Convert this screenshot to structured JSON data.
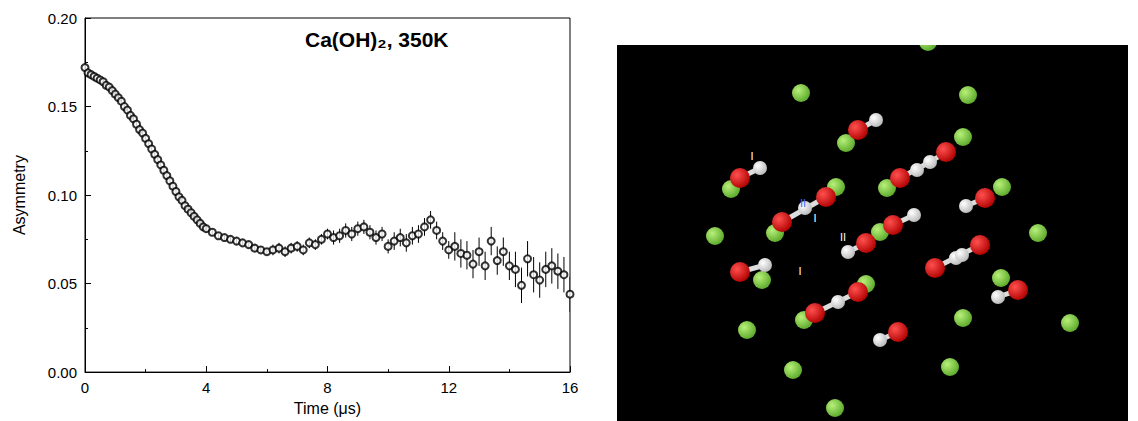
{
  "chart_data": {
    "type": "scatter",
    "title": "Ca(OH)₂, 350K",
    "x_label": "Time (μs)",
    "y_label": "Asymmetry",
    "marker": "open_circle",
    "color": "#000000",
    "grid": false,
    "x": [
      0,
      0.1,
      0.2,
      0.3,
      0.4,
      0.5,
      0.6,
      0.7,
      0.8,
      0.9,
      1.0,
      1.1,
      1.2,
      1.3,
      1.4,
      1.5,
      1.6,
      1.7,
      1.8,
      1.9,
      2.0,
      2.1,
      2.2,
      2.3,
      2.4,
      2.5,
      2.6,
      2.7,
      2.8,
      2.9,
      3.0,
      3.1,
      3.2,
      3.3,
      3.4,
      3.5,
      3.6,
      3.7,
      3.8,
      3.9,
      4.0,
      4.2,
      4.4,
      4.6,
      4.8,
      5.0,
      5.2,
      5.4,
      5.6,
      5.8,
      6.0,
      6.2,
      6.4,
      6.6,
      6.8,
      7.0,
      7.2,
      7.4,
      7.6,
      7.8,
      8.0,
      8.2,
      8.4,
      8.6,
      8.8,
      9.0,
      9.2,
      9.4,
      9.6,
      9.8,
      10.0,
      10.2,
      10.4,
      10.6,
      10.8,
      11.0,
      11.2,
      11.4,
      11.6,
      11.8,
      12.0,
      12.2,
      12.4,
      12.6,
      12.8,
      13.0,
      13.2,
      13.4,
      13.6,
      13.8,
      14.0,
      14.2,
      14.4,
      14.6,
      14.8,
      15.0,
      15.2,
      15.4,
      15.6,
      15.8,
      16.0
    ],
    "values": [
      0.172,
      0.169,
      0.168,
      0.167,
      0.166,
      0.165,
      0.164,
      0.162,
      0.161,
      0.159,
      0.157,
      0.155,
      0.153,
      0.15,
      0.148,
      0.145,
      0.143,
      0.14,
      0.137,
      0.135,
      0.132,
      0.129,
      0.126,
      0.123,
      0.12,
      0.117,
      0.114,
      0.111,
      0.108,
      0.105,
      0.102,
      0.099,
      0.097,
      0.094,
      0.092,
      0.09,
      0.088,
      0.086,
      0.084,
      0.082,
      0.081,
      0.079,
      0.077,
      0.076,
      0.075,
      0.074,
      0.073,
      0.072,
      0.07,
      0.069,
      0.068,
      0.069,
      0.07,
      0.068,
      0.07,
      0.071,
      0.069,
      0.073,
      0.072,
      0.075,
      0.078,
      0.076,
      0.077,
      0.08,
      0.078,
      0.081,
      0.082,
      0.079,
      0.076,
      0.078,
      0.071,
      0.074,
      0.076,
      0.073,
      0.077,
      0.078,
      0.082,
      0.086,
      0.08,
      0.074,
      0.069,
      0.071,
      0.067,
      0.066,
      0.061,
      0.068,
      0.06,
      0.074,
      0.063,
      0.068,
      0.06,
      0.058,
      0.049,
      0.064,
      0.055,
      0.052,
      0.058,
      0.06,
      0.057,
      0.055,
      0.044
    ],
    "errors": [
      0.002,
      0.002,
      0.002,
      0.002,
      0.002,
      0.002,
      0.002,
      0.002,
      0.002,
      0.002,
      0.002,
      0.002,
      0.002,
      0.002,
      0.002,
      0.002,
      0.002,
      0.002,
      0.002,
      0.002,
      0.002,
      0.002,
      0.002,
      0.002,
      0.002,
      0.002,
      0.002,
      0.002,
      0.002,
      0.002,
      0.002,
      0.002,
      0.002,
      0.002,
      0.002,
      0.002,
      0.002,
      0.002,
      0.002,
      0.002,
      0.002,
      0.002,
      0.002,
      0.002,
      0.002,
      0.002,
      0.002,
      0.002,
      0.002,
      0.002,
      0.002,
      0.003,
      0.003,
      0.003,
      0.003,
      0.003,
      0.003,
      0.003,
      0.003,
      0.003,
      0.003,
      0.004,
      0.004,
      0.004,
      0.004,
      0.004,
      0.004,
      0.004,
      0.004,
      0.004,
      0.004,
      0.005,
      0.005,
      0.005,
      0.005,
      0.005,
      0.005,
      0.005,
      0.005,
      0.005,
      0.005,
      0.008,
      0.008,
      0.008,
      0.008,
      0.008,
      0.008,
      0.008,
      0.008,
      0.008,
      0.008,
      0.01,
      0.01,
      0.01,
      0.01,
      0.01,
      0.01,
      0.01,
      0.01,
      0.01,
      0.01
    ],
    "xlim": [
      0,
      16
    ],
    "xticks": [
      0,
      4,
      8,
      12,
      16
    ],
    "ylim": [
      0,
      0.2
    ],
    "yticks": [
      {
        "value": 0,
        "label": "0.00"
      },
      {
        "value": 0.05,
        "label": "0.05"
      },
      {
        "value": 0.1,
        "label": "0.10"
      },
      {
        "value": 0.15,
        "label": "0.15"
      },
      {
        "value": 0.2,
        "label": "0.20"
      }
    ]
  },
  "structure": {
    "labels": [
      "I",
      "II",
      "I",
      "II",
      "I"
    ]
  }
}
